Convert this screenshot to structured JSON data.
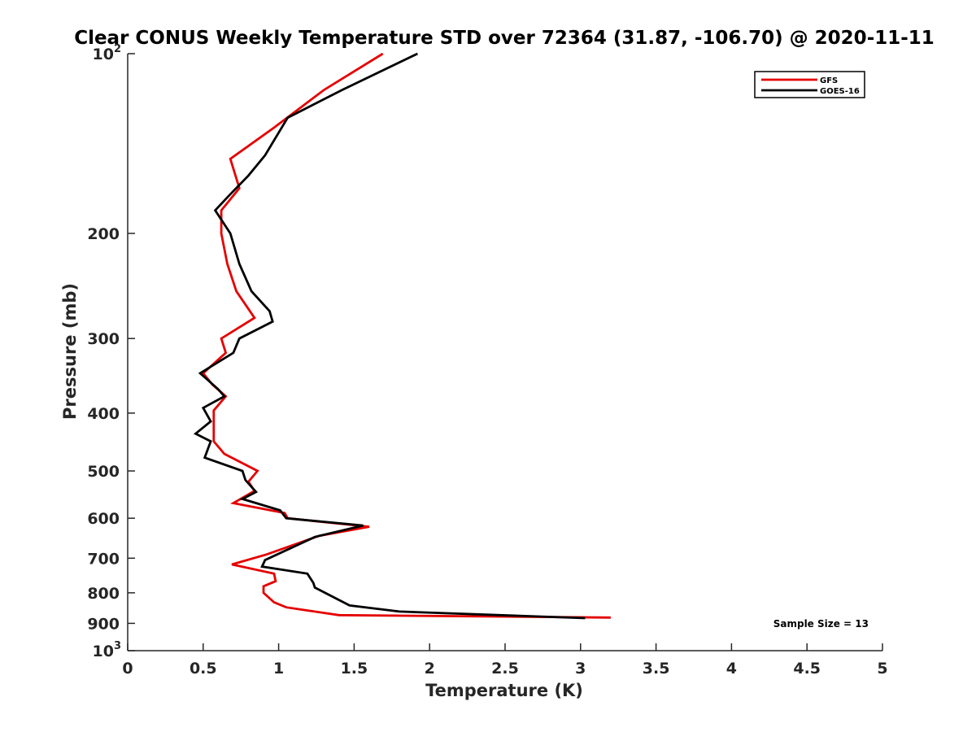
{
  "chart_data": {
    "type": "line",
    "title": "Clear CONUS Weekly Temperature STD over 72364 (31.87, -106.70) @ 2020-11-11",
    "xlabel": "Temperature (K)",
    "ylabel": "Pressure (mb)",
    "xlim": [
      0,
      5
    ],
    "ylim": [
      100,
      1000
    ],
    "y_scale": "log",
    "y_reversed": true,
    "grid": false,
    "legend_position": "top-right",
    "x_ticks": [
      "0",
      "0.5",
      "1",
      "1.5",
      "2",
      "2.5",
      "3",
      "3.5",
      "4",
      "4.5",
      "5"
    ],
    "y_ticks": [
      {
        "value": 100,
        "base": "10",
        "exp": "2"
      },
      {
        "value": 200,
        "label": "200"
      },
      {
        "value": 300,
        "label": "300"
      },
      {
        "value": 400,
        "label": "400"
      },
      {
        "value": 500,
        "label": "500"
      },
      {
        "value": 600,
        "label": "600"
      },
      {
        "value": 700,
        "label": "700"
      },
      {
        "value": 800,
        "label": "800"
      },
      {
        "value": 900,
        "label": "900"
      },
      {
        "value": 1000,
        "base": "10",
        "exp": "3"
      }
    ],
    "series": [
      {
        "name": "GFS",
        "color": "#e50000",
        "points": [
          [
            1.69,
            100
          ],
          [
            1.3,
            115
          ],
          [
            0.97,
            133
          ],
          [
            0.68,
            150
          ],
          [
            0.74,
            168
          ],
          [
            0.62,
            183
          ],
          [
            0.62,
            200
          ],
          [
            0.66,
            225
          ],
          [
            0.72,
            250
          ],
          [
            0.84,
            277
          ],
          [
            0.62,
            300
          ],
          [
            0.65,
            317
          ],
          [
            0.5,
            343
          ],
          [
            0.56,
            358
          ],
          [
            0.65,
            375
          ],
          [
            0.57,
            396
          ],
          [
            0.57,
            446
          ],
          [
            0.64,
            468
          ],
          [
            0.86,
            500
          ],
          [
            0.8,
            521
          ],
          [
            0.84,
            540
          ],
          [
            0.7,
            566
          ],
          [
            1.04,
            588
          ],
          [
            1.06,
            600
          ],
          [
            1.6,
            620
          ],
          [
            1.27,
            642
          ],
          [
            0.92,
            690
          ],
          [
            0.69,
            717
          ],
          [
            0.97,
            743
          ],
          [
            0.98,
            765
          ],
          [
            0.9,
            780
          ],
          [
            0.9,
            800
          ],
          [
            0.97,
            830
          ],
          [
            1.05,
            846
          ],
          [
            1.4,
            872
          ],
          [
            3.2,
            880
          ]
        ]
      },
      {
        "name": "GOES-16",
        "color": "#000000",
        "points": [
          [
            1.92,
            100
          ],
          [
            1.42,
            115
          ],
          [
            1.06,
            128
          ],
          [
            0.91,
            148
          ],
          [
            0.8,
            160
          ],
          [
            0.67,
            173
          ],
          [
            0.58,
            183
          ],
          [
            0.68,
            200
          ],
          [
            0.74,
            225
          ],
          [
            0.82,
            250
          ],
          [
            0.94,
            270
          ],
          [
            0.96,
            281
          ],
          [
            0.74,
            300
          ],
          [
            0.7,
            317
          ],
          [
            0.48,
            343
          ],
          [
            0.6,
            365
          ],
          [
            0.64,
            375
          ],
          [
            0.5,
            392
          ],
          [
            0.55,
            413
          ],
          [
            0.45,
            433
          ],
          [
            0.55,
            446
          ],
          [
            0.51,
            475
          ],
          [
            0.76,
            500
          ],
          [
            0.78,
            518
          ],
          [
            0.85,
            542
          ],
          [
            0.76,
            557
          ],
          [
            1.01,
            582
          ],
          [
            1.05,
            600
          ],
          [
            1.56,
            617
          ],
          [
            1.24,
            645
          ],
          [
            0.91,
            705
          ],
          [
            0.89,
            723
          ],
          [
            1.19,
            743
          ],
          [
            1.23,
            770
          ],
          [
            1.24,
            784
          ],
          [
            1.47,
            840
          ],
          [
            1.8,
            860
          ],
          [
            3.03,
            882
          ]
        ]
      }
    ],
    "annotations": [
      {
        "text": "Sample Size = 13",
        "position": "bottom-right"
      }
    ]
  }
}
